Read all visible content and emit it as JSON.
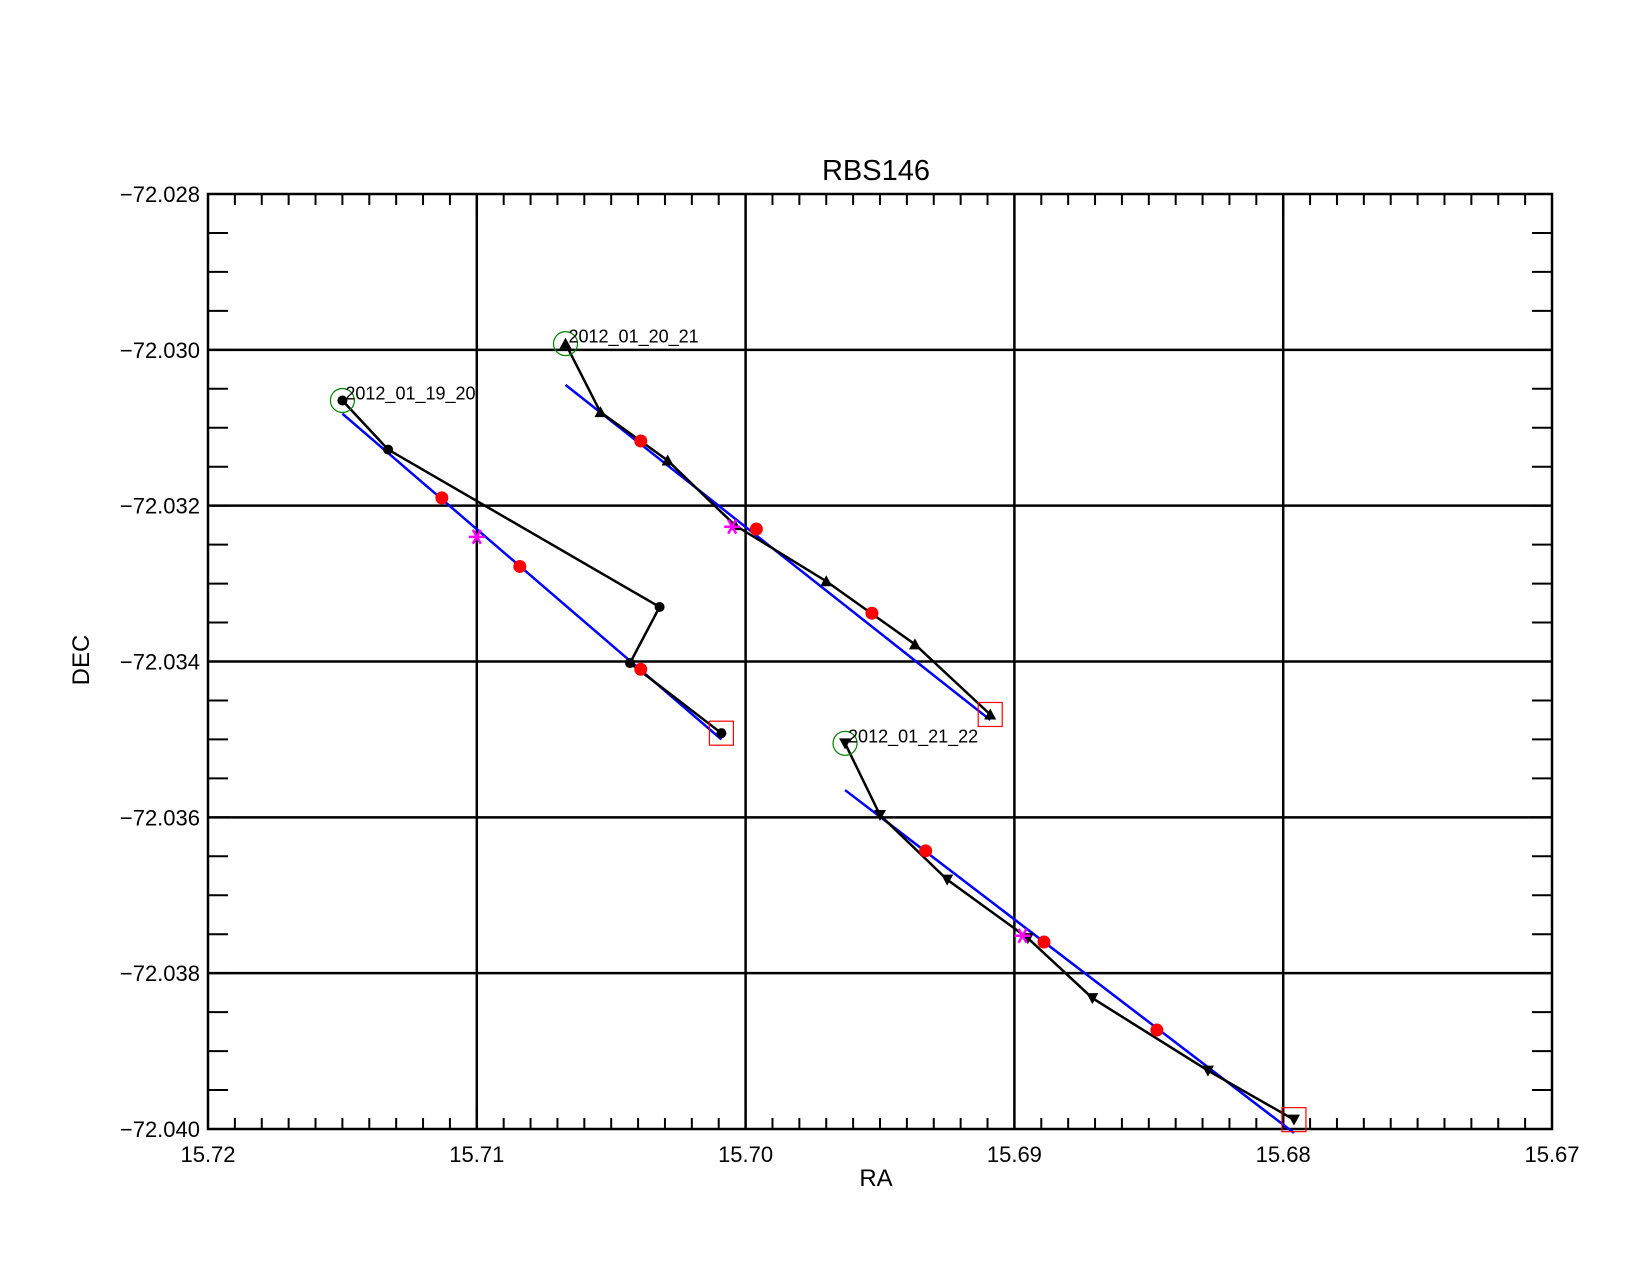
{
  "chart_data": {
    "type": "scatter",
    "title": "RBS146",
    "xlabel": "RA",
    "ylabel": "DEC",
    "xlim": [
      15.72,
      15.67
    ],
    "ylim": [
      -72.04,
      -72.028
    ],
    "x_reversed": true,
    "grid": true,
    "x_ticks": [
      "15.72",
      "15.71",
      "15.70",
      "15.69",
      "15.68",
      "15.67"
    ],
    "x_tick_values": [
      15.72,
      15.71,
      15.7,
      15.69,
      15.68,
      15.67
    ],
    "y_ticks": [
      "-72.028",
      "-72.030",
      "-72.032",
      "-72.034",
      "-72.036",
      "-72.038",
      "-72.040"
    ],
    "y_tick_values": [
      -72.028,
      -72.03,
      -72.032,
      -72.034,
      -72.036,
      -72.038,
      -72.04
    ],
    "x_grid": [
      15.71,
      15.7,
      15.69,
      15.68
    ],
    "y_grid": [
      -72.03,
      -72.032,
      -72.034,
      -72.036,
      -72.038
    ],
    "x_minor_step": 0.001,
    "y_minor_step": 0.0005,
    "colors": {
      "track": "#000000",
      "fit": "#0000ff",
      "red_points": "#ff0000",
      "mean": "#ff00ff",
      "start_circle": "#008000",
      "end_square": "#ff0000"
    },
    "series": [
      {
        "label": "2012_01_19_20",
        "marker": "circle",
        "track": [
          [
            15.715,
            -72.03065
          ],
          [
            15.7133,
            -72.03128
          ],
          [
            15.7032,
            -72.0333
          ],
          [
            15.7043,
            -72.03402
          ],
          [
            15.7009,
            -72.03492
          ]
        ],
        "fit": [
          [
            15.715,
            -72.03082
          ],
          [
            15.7009,
            -72.035
          ]
        ],
        "red_points": [
          [
            15.7113,
            -72.0319
          ],
          [
            15.7084,
            -72.03278
          ],
          [
            15.7039,
            -72.0341
          ]
        ],
        "mean": [
          15.71,
          -72.0324
        ],
        "start": [
          15.715,
          -72.03065
        ],
        "end": [
          15.7009,
          -72.03492
        ]
      },
      {
        "label": "2012_01_20_21",
        "marker": "triangle-up",
        "track": [
          [
            15.7067,
            -72.02992
          ],
          [
            15.7054,
            -72.0308
          ],
          [
            15.7029,
            -72.03142
          ],
          [
            15.7004,
            -72.03225
          ],
          [
            15.697,
            -72.03297
          ],
          [
            15.6937,
            -72.03378
          ],
          [
            15.6909,
            -72.03468
          ]
        ],
        "fit": [
          [
            15.7067,
            -72.03045
          ],
          [
            15.6909,
            -72.03475
          ]
        ],
        "red_points": [
          [
            15.7039,
            -72.03117
          ],
          [
            15.6996,
            -72.0323
          ],
          [
            15.6953,
            -72.03338
          ]
        ],
        "mean": [
          15.7005,
          -72.03227
        ],
        "start": [
          15.7067,
          -72.02992
        ],
        "end": [
          15.6909,
          -72.03468
        ]
      },
      {
        "label": "2012_01_21_22",
        "marker": "triangle-down",
        "track": [
          [
            15.6963,
            -72.03505
          ],
          [
            15.695,
            -72.03597
          ],
          [
            15.6925,
            -72.0368
          ],
          [
            15.6895,
            -72.03755
          ],
          [
            15.6871,
            -72.03832
          ],
          [
            15.6828,
            -72.03925
          ],
          [
            15.6796,
            -72.03988
          ]
        ],
        "fit": [
          [
            15.6963,
            -72.03565
          ],
          [
            15.6796,
            -72.04005
          ]
        ],
        "red_points": [
          [
            15.6933,
            -72.03643
          ],
          [
            15.6889,
            -72.0376
          ],
          [
            15.6847,
            -72.03873
          ]
        ],
        "mean": [
          15.6897,
          -72.03752
        ],
        "start": [
          15.6963,
          -72.03505
        ],
        "end": [
          15.6796,
          -72.03988
        ]
      }
    ]
  }
}
